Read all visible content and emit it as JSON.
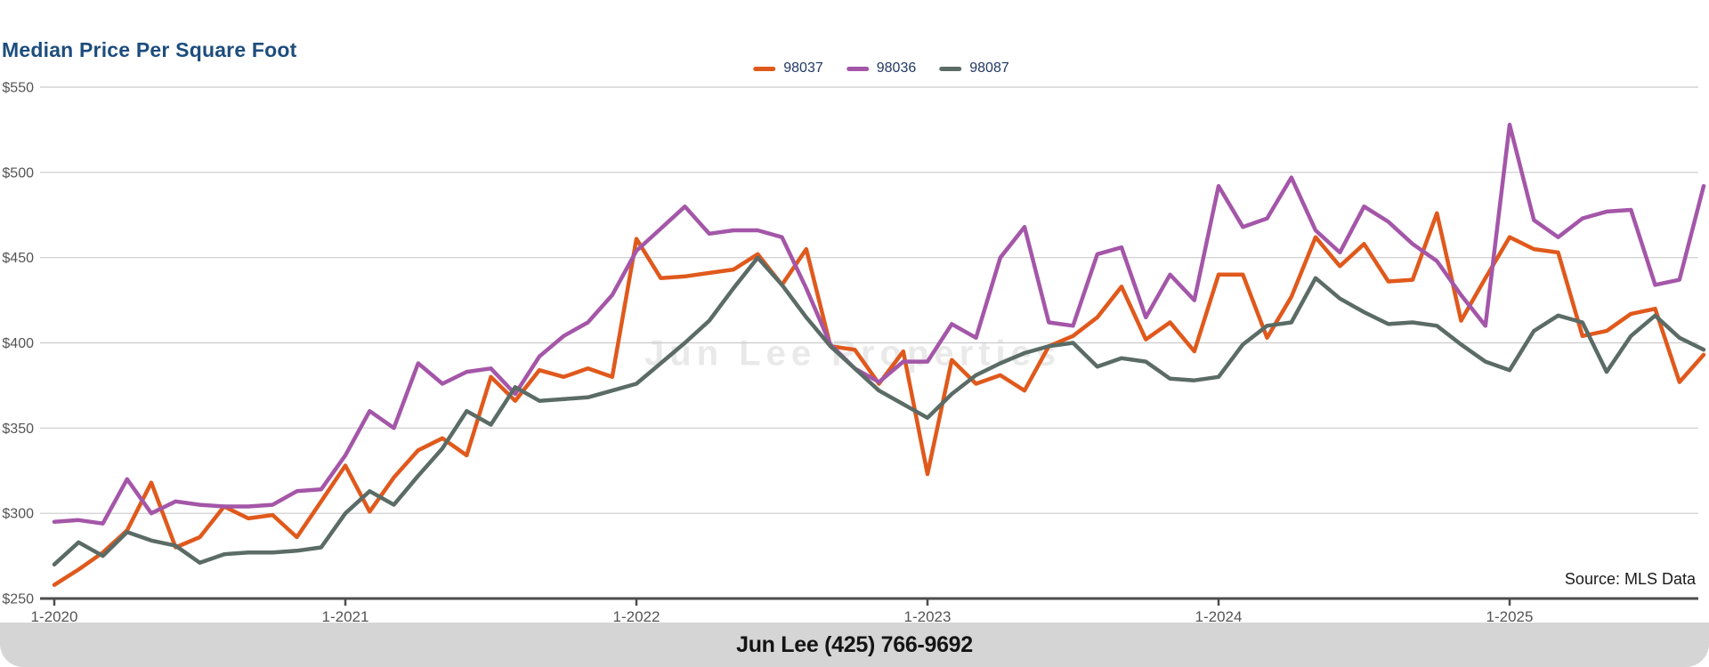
{
  "page": {
    "source_note": "Source: MLS Data",
    "watermark": "Jun Lee Properties",
    "footer": "Jun Lee (425) 766-9692"
  },
  "chart_data": {
    "type": "line",
    "title": "Median Price Per Square Foot",
    "ylabel": "",
    "xlabel": "",
    "ylim": [
      250,
      550
    ],
    "grid": "horizontal",
    "legend_position": "top-center",
    "y_ticks": [
      550,
      500,
      450,
      400,
      350,
      300,
      250
    ],
    "y_tick_labels": [
      "$550",
      "$500",
      "$450",
      "$400",
      "$350",
      "$300",
      "$250"
    ],
    "x_tick_labels": [
      "1-2020",
      "1-2021",
      "1-2022",
      "1-2023",
      "1-2024",
      "1-2025"
    ],
    "x_tick_month_indices": [
      0,
      12,
      24,
      36,
      48,
      60
    ],
    "months": [
      "1-2020",
      "2-2020",
      "3-2020",
      "4-2020",
      "5-2020",
      "6-2020",
      "7-2020",
      "8-2020",
      "9-2020",
      "10-2020",
      "11-2020",
      "12-2020",
      "1-2021",
      "2-2021",
      "3-2021",
      "4-2021",
      "5-2021",
      "6-2021",
      "7-2021",
      "8-2021",
      "9-2021",
      "10-2021",
      "11-2021",
      "12-2021",
      "1-2022",
      "2-2022",
      "3-2022",
      "4-2022",
      "5-2022",
      "6-2022",
      "7-2022",
      "8-2022",
      "9-2022",
      "10-2022",
      "11-2022",
      "12-2022",
      "1-2023",
      "2-2023",
      "3-2023",
      "4-2023",
      "5-2023",
      "6-2023",
      "7-2023",
      "8-2023",
      "9-2023",
      "10-2023",
      "11-2023",
      "12-2023",
      "1-2024",
      "2-2024",
      "3-2024",
      "4-2024",
      "5-2024",
      "6-2024",
      "7-2024",
      "8-2024",
      "9-2024",
      "10-2024",
      "11-2024",
      "12-2024",
      "1-2025",
      "2-2025",
      "3-2025",
      "4-2025",
      "5-2025",
      "6-2025",
      "7-2025",
      "8-2025",
      "9-2025"
    ],
    "series": [
      {
        "name": "98037",
        "color": "#e0591c",
        "values": [
          258,
          267,
          277,
          290,
          318,
          280,
          286,
          304,
          297,
          299,
          286,
          307,
          328,
          301,
          321,
          337,
          344,
          334,
          380,
          366,
          384,
          380,
          385,
          380,
          461,
          438,
          439,
          441,
          443,
          452,
          434,
          455,
          398,
          396,
          376,
          395,
          323,
          390,
          376,
          381,
          372,
          398,
          404,
          415,
          433,
          402,
          412,
          395,
          440,
          440,
          403,
          427,
          462,
          445,
          458,
          436,
          437,
          476,
          413,
          438,
          462,
          455,
          453,
          404,
          407,
          417,
          420,
          377,
          393
        ]
      },
      {
        "name": "98036",
        "color": "#a456a8",
        "values": [
          295,
          296,
          294,
          320,
          300,
          307,
          305,
          304,
          304,
          305,
          313,
          314,
          334,
          360,
          350,
          388,
          376,
          383,
          385,
          370,
          392,
          404,
          412,
          428,
          454,
          467,
          480,
          464,
          466,
          466,
          462,
          432,
          399,
          385,
          377,
          389,
          389,
          411,
          403,
          450,
          468,
          412,
          410,
          452,
          456,
          415,
          440,
          425,
          492,
          468,
          473,
          497,
          466,
          453,
          480,
          471,
          458,
          448,
          428,
          410,
          528,
          472,
          462,
          473,
          477,
          478,
          434,
          437,
          492
        ]
      },
      {
        "name": "98087",
        "color": "#5b6b66",
        "values": [
          270,
          283,
          275,
          289,
          284,
          281,
          271,
          276,
          277,
          277,
          278,
          280,
          300,
          313,
          305,
          322,
          338,
          360,
          352,
          374,
          366,
          367,
          368,
          372,
          376,
          388,
          400,
          413,
          432,
          450,
          434,
          415,
          398,
          385,
          372,
          364,
          356,
          370,
          381,
          388,
          394,
          398,
          400,
          386,
          391,
          389,
          379,
          378,
          380,
          399,
          410,
          412,
          438,
          426,
          418,
          411,
          412,
          410,
          399,
          389,
          384,
          407,
          416,
          412,
          383,
          404,
          416,
          403,
          396
        ]
      }
    ],
    "axis_color": "#4d4d4d",
    "gridline_color": "#cbcbcb",
    "tick_label_color": "#545454",
    "title_color": "#1d4d7d"
  }
}
